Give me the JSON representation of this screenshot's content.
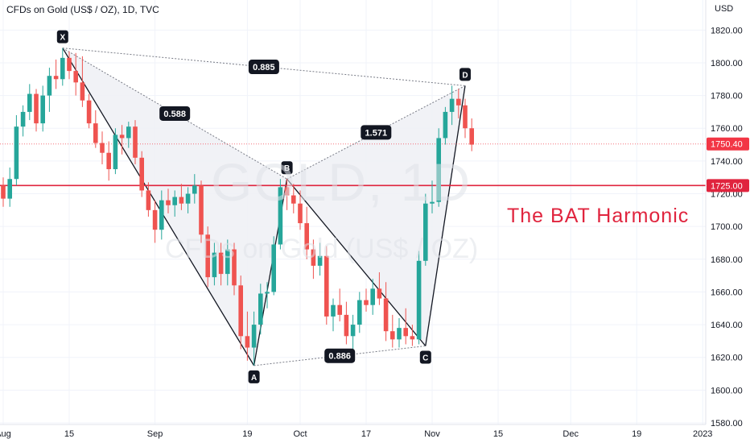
{
  "chart_data": {
    "type": "candlestick",
    "title": "CFDs on Gold (US$ / OZ), 1D, TVC",
    "watermark_symbol": "GOLD, 1D",
    "watermark_name": "CFDs on Gold (US$ / OZ)",
    "annotation": "The BAT Harmonic",
    "currency": "USD",
    "ylim": [
      1580,
      1830
    ],
    "y_ticks": [
      "1580.00",
      "1600.00",
      "1620.00",
      "1640.00",
      "1660.00",
      "1680.00",
      "1700.00",
      "1720.00",
      "1740.00",
      "1760.00",
      "1780.00",
      "1800.00",
      "1820.00"
    ],
    "x_ticks": [
      {
        "bar": 0,
        "label": "Aug"
      },
      {
        "bar": 10,
        "label": "15"
      },
      {
        "bar": 23,
        "label": "Sep"
      },
      {
        "bar": 37,
        "label": "19"
      },
      {
        "bar": 45,
        "label": "Oct"
      },
      {
        "bar": 55,
        "label": "17"
      },
      {
        "bar": 65,
        "label": "Nov"
      },
      {
        "bar": 75,
        "label": "15"
      },
      {
        "bar": 86,
        "label": "Dec"
      },
      {
        "bar": 96,
        "label": "19"
      },
      {
        "bar": 106,
        "label": "2023"
      }
    ],
    "price_tags": [
      {
        "value": 1750.4,
        "label": "1750.40",
        "color": "#f23645",
        "style": "dotted"
      },
      {
        "value": 1725.0,
        "label": "1725.00",
        "color": "#e0243e",
        "style": "solid"
      }
    ],
    "pattern_points": [
      {
        "name": "X",
        "bar": 9,
        "price": 1809
      },
      {
        "name": "A",
        "bar": 38,
        "price": 1615
      },
      {
        "name": "B",
        "bar": 43,
        "price": 1729
      },
      {
        "name": "C",
        "bar": 64,
        "price": 1627
      },
      {
        "name": "D",
        "bar": 70,
        "price": 1786
      }
    ],
    "ratios": [
      {
        "label": "0.885",
        "from": "X",
        "to": "D"
      },
      {
        "label": "0.588",
        "from": "X",
        "to": "B"
      },
      {
        "label": "1.571",
        "from": "B",
        "to": "D"
      },
      {
        "label": "0.886",
        "from": "A",
        "to": "C"
      }
    ],
    "colors": {
      "up": "#26a69a",
      "down": "#ef5350",
      "pattern_fill": "#eef0f4",
      "annotation": "#e0243e"
    },
    "ohlc": [
      [
        1725,
        1730,
        1712,
        1717
      ],
      [
        1717,
        1736,
        1712,
        1729
      ],
      [
        1729,
        1768,
        1725,
        1761
      ],
      [
        1761,
        1774,
        1755,
        1770
      ],
      [
        1770,
        1787,
        1765,
        1781
      ],
      [
        1781,
        1784,
        1758,
        1763
      ],
      [
        1763,
        1786,
        1758,
        1780
      ],
      [
        1780,
        1797,
        1770,
        1792
      ],
      [
        1792,
        1802,
        1784,
        1790
      ],
      [
        1790,
        1809,
        1786,
        1803
      ],
      [
        1803,
        1807,
        1790,
        1795
      ],
      [
        1795,
        1806,
        1780,
        1788
      ],
      [
        1788,
        1804,
        1773,
        1777
      ],
      [
        1777,
        1781,
        1760,
        1763
      ],
      [
        1763,
        1771,
        1748,
        1751
      ],
      [
        1751,
        1758,
        1738,
        1745
      ],
      [
        1745,
        1752,
        1728,
        1735
      ],
      [
        1735,
        1760,
        1732,
        1756
      ],
      [
        1756,
        1762,
        1744,
        1754
      ],
      [
        1754,
        1764,
        1748,
        1761
      ],
      [
        1761,
        1765,
        1738,
        1742
      ],
      [
        1742,
        1746,
        1718,
        1722
      ],
      [
        1722,
        1727,
        1706,
        1710
      ],
      [
        1710,
        1716,
        1690,
        1698
      ],
      [
        1698,
        1722,
        1692,
        1716
      ],
      [
        1716,
        1723,
        1708,
        1713
      ],
      [
        1713,
        1722,
        1706,
        1718
      ],
      [
        1718,
        1726,
        1710,
        1714
      ],
      [
        1714,
        1724,
        1708,
        1720
      ],
      [
        1720,
        1732,
        1714,
        1725
      ],
      [
        1725,
        1728,
        1690,
        1695
      ],
      [
        1695,
        1700,
        1663,
        1669
      ],
      [
        1669,
        1690,
        1664,
        1684
      ],
      [
        1684,
        1690,
        1664,
        1671
      ],
      [
        1671,
        1692,
        1664,
        1686
      ],
      [
        1686,
        1690,
        1658,
        1664
      ],
      [
        1664,
        1670,
        1625,
        1633
      ],
      [
        1633,
        1648,
        1618,
        1626
      ],
      [
        1626,
        1648,
        1615,
        1640
      ],
      [
        1640,
        1665,
        1634,
        1659
      ],
      [
        1659,
        1666,
        1650,
        1660
      ],
      [
        1660,
        1694,
        1658,
        1689
      ],
      [
        1689,
        1729,
        1686,
        1724
      ],
      [
        1724,
        1729,
        1710,
        1719
      ],
      [
        1719,
        1726,
        1708,
        1714
      ],
      [
        1714,
        1722,
        1698,
        1702
      ],
      [
        1702,
        1712,
        1680,
        1686
      ],
      [
        1686,
        1692,
        1668,
        1676
      ],
      [
        1676,
        1690,
        1670,
        1682
      ],
      [
        1682,
        1688,
        1640,
        1645
      ],
      [
        1645,
        1656,
        1636,
        1652
      ],
      [
        1652,
        1662,
        1642,
        1646
      ],
      [
        1646,
        1654,
        1628,
        1633
      ],
      [
        1633,
        1646,
        1622,
        1640
      ],
      [
        1640,
        1660,
        1635,
        1655
      ],
      [
        1655,
        1662,
        1648,
        1652
      ],
      [
        1652,
        1668,
        1646,
        1662
      ],
      [
        1662,
        1672,
        1652,
        1656
      ],
      [
        1656,
        1666,
        1630,
        1636
      ],
      [
        1636,
        1646,
        1626,
        1631
      ],
      [
        1631,
        1644,
        1626,
        1638
      ],
      [
        1638,
        1650,
        1628,
        1633
      ],
      [
        1633,
        1640,
        1627,
        1631
      ],
      [
        1631,
        1685,
        1628,
        1679
      ],
      [
        1679,
        1720,
        1676,
        1714
      ],
      [
        1714,
        1728,
        1708,
        1715
      ],
      [
        1715,
        1760,
        1712,
        1754
      ],
      [
        1754,
        1773,
        1750,
        1770
      ],
      [
        1770,
        1786,
        1762,
        1778
      ],
      [
        1778,
        1784,
        1766,
        1774
      ],
      [
        1774,
        1778,
        1754,
        1760
      ],
      [
        1760,
        1766,
        1746,
        1750
      ]
    ]
  }
}
